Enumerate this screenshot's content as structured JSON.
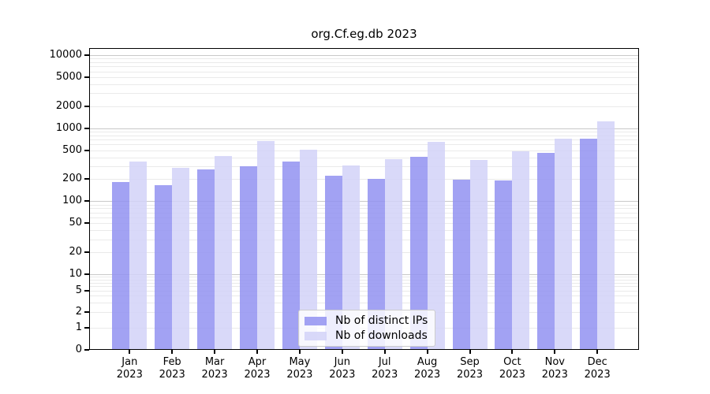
{
  "chart_data": {
    "type": "bar",
    "title": "org.Cf.eg.db 2023",
    "categories": [
      "Jan",
      "Feb",
      "Mar",
      "Apr",
      "May",
      "Jun",
      "Jul",
      "Aug",
      "Sep",
      "Oct",
      "Nov",
      "Dec"
    ],
    "year_label": "2023",
    "series": [
      {
        "name": "Nb of distinct IPs",
        "color": "#9292f1",
        "values": [
          185,
          165,
          270,
          300,
          345,
          225,
          200,
          405,
          197,
          193,
          460,
          725
        ]
      },
      {
        "name": "Nb of downloads",
        "color": "#d2d2f8",
        "values": [
          345,
          285,
          415,
          670,
          505,
          310,
          375,
          645,
          365,
          485,
          720,
          1250
        ]
      }
    ],
    "yscale": "log-above-1 with 0 baseline",
    "yticks": [
      0,
      1,
      2,
      5,
      10,
      20,
      50,
      100,
      200,
      500,
      1000,
      2000,
      5000,
      10000
    ],
    "ylim": [
      0,
      10000
    ],
    "xlabel": "",
    "ylabel": "",
    "grid": "horizontal major and log-minor gridlines",
    "legend_position": "bottom center inside plot",
    "colors": {
      "axis": "#000000",
      "gridline_minor": "#eaeaea",
      "gridline_major": "#c9c9c9",
      "legend_border": "#cccccc"
    }
  }
}
